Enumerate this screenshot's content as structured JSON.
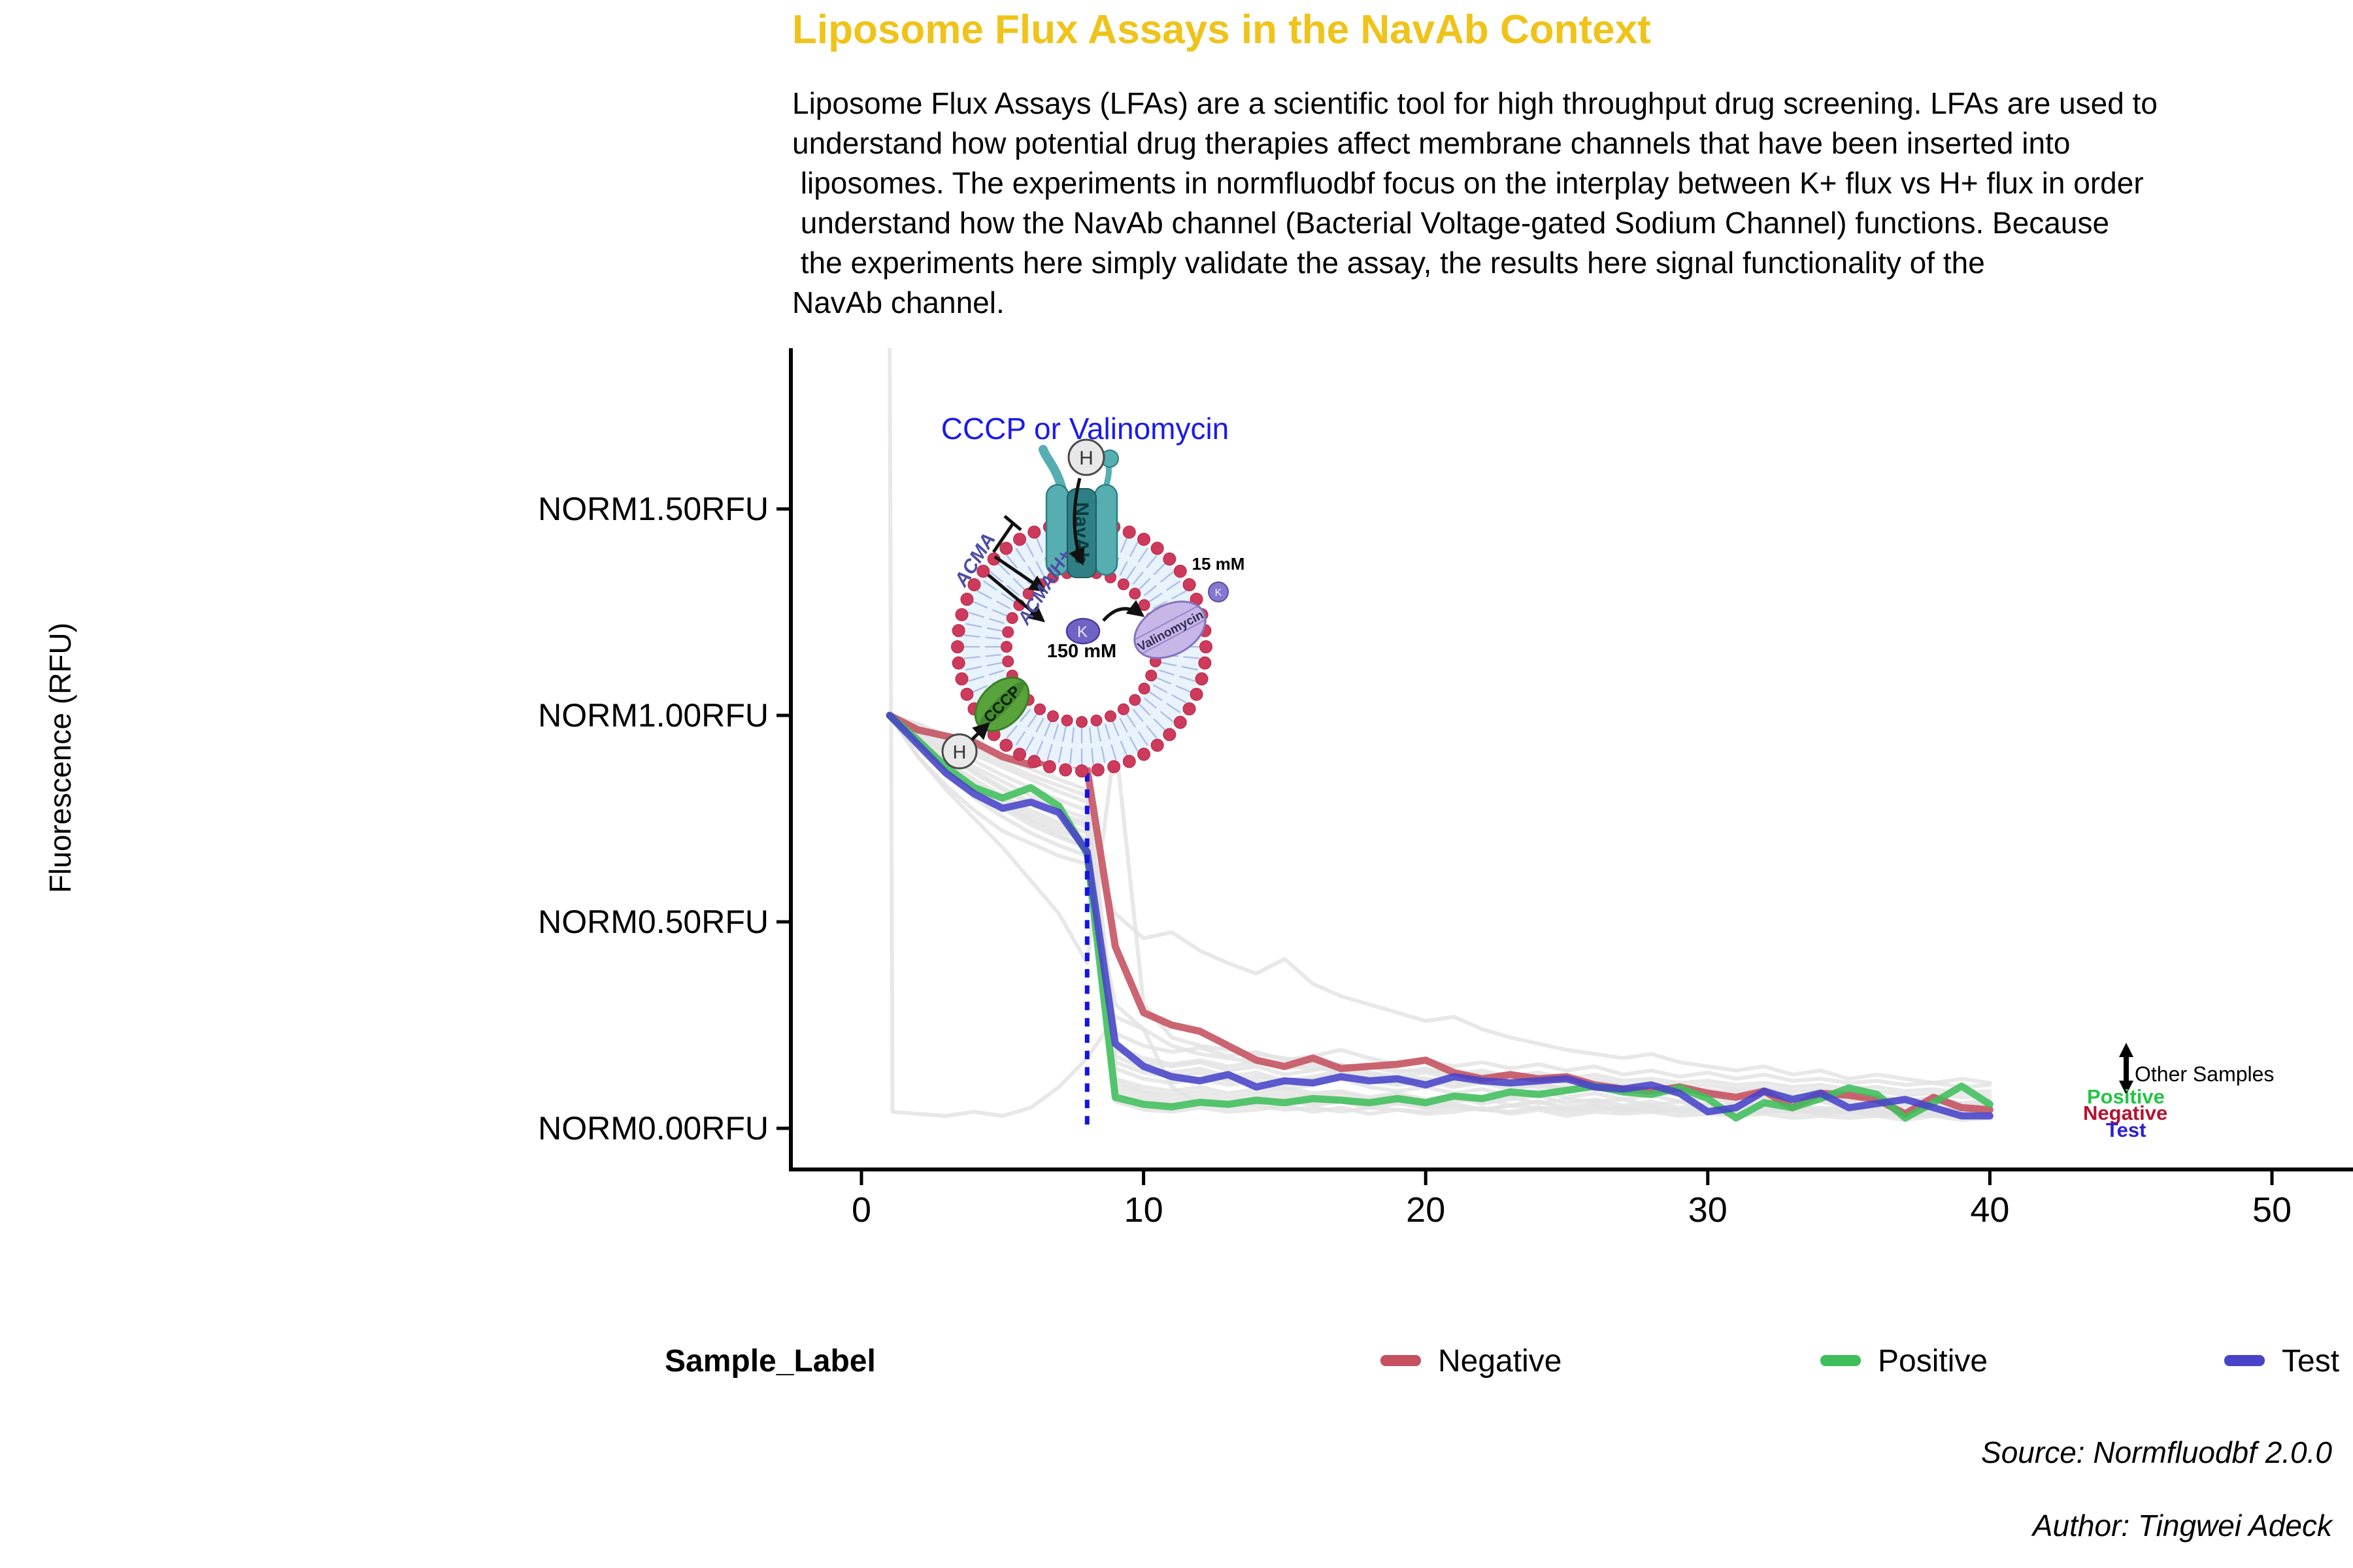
{
  "title": "Liposome Flux Assays in the NavAb Context",
  "title_color": "#EFC319",
  "paragraph_lines": [
    "Liposome Flux Assays (LFAs) are a scientific tool for high throughput drug screening. LFAs are used to",
    "understand how potential drug therapies affect membrane channels that have been inserted into",
    " liposomes. The experiments in normfluodbf focus on the interplay between K+ flux vs H+ flux in order",
    " understand how the NavAb channel (Bacterial Voltage-gated Sodium Channel) functions. Because",
    " the experiments here simply validate the assay, the results here signal functionality of the",
    "NavAb channel."
  ],
  "axis": {
    "y_title": "Fluorescence (RFU)",
    "y_tick_labels": [
      "NORM0.00RFU",
      "NORM0.50RFU",
      "NORM1.00RFU",
      "NORM1.50RFU"
    ],
    "y_tick_values": [
      0,
      0.5,
      1.0,
      1.5
    ],
    "x_tick_values": [
      0,
      10,
      20,
      30,
      40,
      50
    ]
  },
  "legend": {
    "title": "Sample_Label",
    "entries": [
      {
        "label": "Negative",
        "color": "#C5505F"
      },
      {
        "label": "Positive",
        "color": "#3FBE5B"
      },
      {
        "label": "Test",
        "color": "#4843C8"
      }
    ]
  },
  "captions": {
    "source": "Source: Normfluodbf 2.0.0",
    "author": "Author: Tingwei Adeck"
  },
  "annotations": {
    "other_samples": "Other Samples",
    "positive": "Positive",
    "negative": "Negative",
    "test": "Test",
    "positive_color": "#22C544",
    "negative_color": "#B51230",
    "test_color": "#2B1FD6"
  },
  "diagram": {
    "title": "CCCP or Valinomycin",
    "title_color": "#1A1AEB",
    "navab": "NavAb",
    "acma": "ACMA",
    "acma_h": "ACMA/H+",
    "h_top": "H",
    "h_bottom": "H",
    "k_in": "K",
    "k_in_conc": "150 mM",
    "k_out": "K",
    "k_out_conc": "15 mM",
    "valinomycin": "Valinomycin",
    "cccp": "CCCP"
  },
  "chart_data": {
    "type": "line",
    "title": "",
    "xlabel": "",
    "ylabel": "Fluorescence (RFU)",
    "xlim": [
      -2.2,
      51.6
    ],
    "ylim": [
      -0.11,
      1.89
    ],
    "grid": false,
    "legend_position": "bottom",
    "cycles": [
      1,
      2,
      3,
      4,
      5,
      6,
      7,
      8,
      9,
      10,
      11,
      12,
      13,
      14,
      15,
      16,
      17,
      18,
      19,
      20,
      21,
      22,
      23,
      24,
      25,
      26,
      27,
      28,
      29,
      30,
      31,
      32,
      33,
      34,
      35,
      36,
      37,
      38,
      39,
      40
    ],
    "event_line": {
      "x": 8,
      "y_from": 0.0,
      "y_to": 0.9,
      "color": "#1414E0",
      "style": "dotted"
    },
    "series": [
      {
        "name": "Negative",
        "color": "#C5505F",
        "values": [
          1.0,
          0.965,
          0.95,
          0.935,
          0.9,
          0.88,
          0.895,
          0.87,
          0.44,
          0.28,
          0.25,
          0.235,
          0.2,
          0.165,
          0.15,
          0.17,
          0.145,
          0.15,
          0.155,
          0.165,
          0.135,
          0.12,
          0.13,
          0.12,
          0.125,
          0.105,
          0.095,
          0.09,
          0.1,
          0.085,
          0.075,
          0.09,
          0.05,
          0.085,
          0.08,
          0.07,
          0.035,
          0.075,
          0.05,
          0.045
        ]
      },
      {
        "name": "Positive",
        "color": "#3FBE5B",
        "values": [
          1.0,
          0.94,
          0.875,
          0.825,
          0.8,
          0.825,
          0.78,
          0.665,
          0.075,
          0.058,
          0.052,
          0.063,
          0.058,
          0.068,
          0.062,
          0.072,
          0.068,
          0.062,
          0.072,
          0.062,
          0.078,
          0.072,
          0.088,
          0.082,
          0.092,
          0.102,
          0.088,
          0.082,
          0.098,
          0.072,
          0.025,
          0.062,
          0.05,
          0.072,
          0.098,
          0.082,
          0.025,
          0.062,
          0.102,
          0.058
        ]
      },
      {
        "name": "Test",
        "color": "#4843C8",
        "values": [
          1.0,
          0.93,
          0.86,
          0.81,
          0.775,
          0.79,
          0.765,
          0.67,
          0.205,
          0.15,
          0.125,
          0.115,
          0.13,
          0.1,
          0.115,
          0.11,
          0.125,
          0.115,
          0.12,
          0.105,
          0.125,
          0.115,
          0.11,
          0.115,
          0.12,
          0.1,
          0.095,
          0.105,
          0.085,
          0.04,
          0.05,
          0.09,
          0.07,
          0.085,
          0.05,
          0.06,
          0.07,
          0.05,
          0.03,
          0.03
        ]
      }
    ],
    "other_samples": {
      "name": "Other Samples",
      "color": "#E2E2E2",
      "series": [
        {
          "values": [
            1,
            0.9,
            0.82,
            0.75,
            0.68,
            0.6,
            0.52,
            0.4,
            0.94,
            0.3,
            0.22,
            0.2,
            0.19,
            0.18,
            0.17,
            0.16,
            0.15,
            0.15,
            0.14,
            0.14,
            0.13,
            0.13,
            0.12,
            0.12,
            0.11,
            0.11,
            0.1,
            0.1,
            0.1,
            0.09,
            0.09,
            0.09,
            0.08,
            0.08,
            0.08,
            0.07,
            0.07,
            0.07,
            0.06,
            0.06
          ]
        },
        {
          "values": [
            1,
            0.94,
            0.88,
            0.83,
            0.78,
            0.745,
            0.71,
            0.68,
            0.52,
            0.46,
            0.475,
            0.43,
            0.4,
            0.375,
            0.41,
            0.35,
            0.32,
            0.3,
            0.28,
            0.26,
            0.27,
            0.24,
            0.22,
            0.205,
            0.19,
            0.18,
            0.17,
            0.18,
            0.16,
            0.15,
            0.14,
            0.15,
            0.13,
            0.14,
            0.12,
            0.13,
            0.12,
            0.11,
            0.12,
            0.11
          ]
        },
        {
          "x": [
            1,
            1.1,
            2,
            3,
            4,
            5,
            6,
            7,
            8,
            9,
            10,
            11,
            12,
            13,
            14,
            15,
            16,
            17,
            18,
            19,
            20,
            21,
            22,
            23,
            24,
            25,
            26,
            27,
            28,
            29,
            30,
            31,
            32,
            33,
            34,
            35,
            36,
            37,
            38,
            39,
            40
          ],
          "values": [
            1.9,
            0.04,
            0.035,
            0.03,
            0.04,
            0.03,
            0.05,
            0.1,
            0.17,
            0.27,
            0.24,
            0.1,
            0.06,
            0.05,
            0.055,
            0.045,
            0.05,
            0.04,
            0.05,
            0.045,
            0.04,
            0.05,
            0.045,
            0.04,
            0.05,
            0.04,
            0.045,
            0.05,
            0.04,
            0.045,
            0.04,
            0.035,
            0.04,
            0.045,
            0.035,
            0.04,
            0.035,
            0.04,
            0.035,
            0.03,
            0.035
          ]
        },
        {
          "values": [
            1,
            0.97,
            0.935,
            0.905,
            0.875,
            0.845,
            0.815,
            0.79,
            0.2,
            0.17,
            0.155,
            0.165,
            0.15,
            0.16,
            0.145,
            0.155,
            0.14,
            0.15,
            0.135,
            0.145,
            0.13,
            0.14,
            0.125,
            0.135,
            0.12,
            0.13,
            0.115,
            0.12,
            0.11,
            0.115,
            0.105,
            0.11,
            0.1,
            0.105,
            0.095,
            0.1,
            0.09,
            0.095,
            0.085,
            0.09
          ]
        },
        {
          "values": [
            1,
            0.95,
            0.905,
            0.86,
            0.82,
            0.785,
            0.755,
            0.73,
            0.12,
            0.1,
            0.09,
            0.1,
            0.085,
            0.095,
            0.1,
            0.085,
            0.09,
            0.075,
            0.085,
            0.07,
            0.08,
            0.065,
            0.075,
            0.06,
            0.07,
            0.065,
            0.07,
            0.055,
            0.065,
            0.05,
            0.06,
            0.055,
            0.06,
            0.045,
            0.055,
            0.05,
            0.055,
            0.045,
            0.05,
            0.045
          ]
        },
        {
          "values": [
            1,
            0.93,
            0.87,
            0.82,
            0.775,
            0.735,
            0.705,
            0.68,
            0.085,
            0.065,
            0.055,
            0.065,
            0.055,
            0.06,
            0.07,
            0.055,
            0.065,
            0.05,
            0.06,
            0.05,
            0.055,
            0.045,
            0.055,
            0.05,
            0.045,
            0.05,
            0.045,
            0.05,
            0.04,
            0.045,
            0.04,
            0.045,
            0.035,
            0.04,
            0.035,
            0.04,
            0.03,
            0.035,
            0.03,
            0.03
          ]
        },
        {
          "values": [
            1,
            0.96,
            0.915,
            0.875,
            0.84,
            0.805,
            0.775,
            0.75,
            0.175,
            0.145,
            0.135,
            0.145,
            0.125,
            0.135,
            0.115,
            0.125,
            0.14,
            0.12,
            0.11,
            0.12,
            0.105,
            0.115,
            0.1,
            0.11,
            0.095,
            0.105,
            0.09,
            0.1,
            0.085,
            0.095,
            0.08,
            0.09,
            0.075,
            0.085,
            0.07,
            0.08,
            0.065,
            0.075,
            0.06,
            0.07
          ]
        },
        {
          "values": [
            1,
            0.94,
            0.885,
            0.835,
            0.795,
            0.76,
            0.73,
            0.7,
            0.105,
            0.085,
            0.07,
            0.08,
            0.065,
            0.075,
            0.085,
            0.065,
            0.075,
            0.06,
            0.07,
            0.055,
            0.065,
            0.075,
            0.055,
            0.065,
            0.05,
            0.06,
            0.05,
            0.055,
            0.045,
            0.05,
            0.045,
            0.05,
            0.04,
            0.045,
            0.04,
            0.045,
            0.035,
            0.04,
            0.035,
            0.04
          ]
        },
        {
          "values": [
            1,
            0.92,
            0.855,
            0.8,
            0.755,
            0.715,
            0.685,
            0.66,
            0.065,
            0.045,
            0.04,
            0.05,
            0.04,
            0.045,
            0.055,
            0.04,
            0.05,
            0.035,
            0.045,
            0.035,
            0.04,
            0.05,
            0.035,
            0.045,
            0.03,
            0.04,
            0.035,
            0.04,
            0.03,
            0.035,
            0.03,
            0.035,
            0.025,
            0.03,
            0.025,
            0.03,
            0.02,
            0.03,
            0.02,
            0.025
          ]
        },
        {
          "values": [
            1,
            0.98,
            0.95,
            0.925,
            0.895,
            0.87,
            0.845,
            0.82,
            0.23,
            0.2,
            0.185,
            0.195,
            0.175,
            0.185,
            0.165,
            0.175,
            0.19,
            0.17,
            0.155,
            0.165,
            0.15,
            0.16,
            0.145,
            0.155,
            0.14,
            0.15,
            0.13,
            0.14,
            0.125,
            0.135,
            0.12,
            0.13,
            0.115,
            0.12,
            0.11,
            0.115,
            0.105,
            0.11,
            0.1,
            0.105
          ]
        },
        {
          "values": [
            1,
            0.955,
            0.91,
            0.865,
            0.825,
            0.79,
            0.76,
            0.74,
            0.145,
            0.12,
            0.11,
            0.12,
            0.105,
            0.115,
            0.095,
            0.105,
            0.12,
            0.1,
            0.09,
            0.1,
            0.085,
            0.095,
            0.08,
            0.09,
            0.075,
            0.085,
            0.07,
            0.08,
            0.065,
            0.075,
            0.06,
            0.07,
            0.055,
            0.065,
            0.05,
            0.06,
            0.045,
            0.055,
            0.04,
            0.05
          ]
        },
        {
          "values": [
            1,
            0.935,
            0.875,
            0.825,
            0.785,
            0.75,
            0.72,
            0.695,
            0.095,
            0.075,
            0.06,
            0.07,
            0.06,
            0.065,
            0.075,
            0.06,
            0.07,
            0.055,
            0.065,
            0.05,
            0.06,
            0.045,
            0.055,
            0.065,
            0.045,
            0.055,
            0.04,
            0.05,
            0.04,
            0.045,
            0.035,
            0.04,
            0.045,
            0.035,
            0.04,
            0.03,
            0.035,
            0.03,
            0.035,
            0.03
          ]
        },
        {
          "values": [
            1,
            0.965,
            0.925,
            0.89,
            0.855,
            0.825,
            0.795,
            0.77,
            0.19,
            0.16,
            0.15,
            0.16,
            0.14,
            0.15,
            0.13,
            0.14,
            0.155,
            0.135,
            0.125,
            0.135,
            0.12,
            0.13,
            0.115,
            0.125,
            0.11,
            0.12,
            0.105,
            0.11,
            0.1,
            0.105,
            0.095,
            0.1,
            0.09,
            0.095,
            0.085,
            0.09,
            0.08,
            0.085,
            0.075,
            0.08
          ]
        },
        {
          "values": [
            1,
            0.945,
            0.89,
            0.845,
            0.805,
            0.77,
            0.74,
            0.715,
            0.115,
            0.09,
            0.08,
            0.09,
            0.075,
            0.085,
            0.095,
            0.075,
            0.085,
            0.07,
            0.08,
            0.065,
            0.075,
            0.06,
            0.07,
            0.08,
            0.06,
            0.07,
            0.055,
            0.065,
            0.05,
            0.06,
            0.05,
            0.055,
            0.045,
            0.05,
            0.045,
            0.05,
            0.04,
            0.045,
            0.04,
            0.045
          ]
        },
        {
          "values": [
            1,
            0.975,
            0.945,
            0.915,
            0.885,
            0.855,
            0.83,
            0.805,
            0.16,
            0.135,
            0.125,
            0.135,
            0.115,
            0.125,
            0.11,
            0.12,
            0.135,
            0.115,
            0.105,
            0.115,
            0.1,
            0.11,
            0.095,
            0.105,
            0.09,
            0.1,
            0.085,
            0.095,
            0.08,
            0.09,
            0.075,
            0.085,
            0.07,
            0.08,
            0.065,
            0.075,
            0.06,
            0.07,
            0.055,
            0.065
          ]
        },
        {
          "values": [
            1,
            0.9,
            0.83,
            0.77,
            0.72,
            0.69,
            0.66,
            0.64,
            0.3,
            0.24,
            0.2,
            0.18,
            0.17,
            0.16,
            0.15,
            0.145,
            0.14,
            0.13,
            0.125,
            0.12,
            0.115,
            0.11,
            0.105,
            0.1,
            0.1,
            0.095,
            0.09,
            0.09,
            0.085,
            0.08,
            0.08,
            0.075,
            0.075,
            0.07,
            0.07,
            0.065,
            0.065,
            0.06,
            0.06,
            0.055
          ]
        }
      ]
    }
  }
}
